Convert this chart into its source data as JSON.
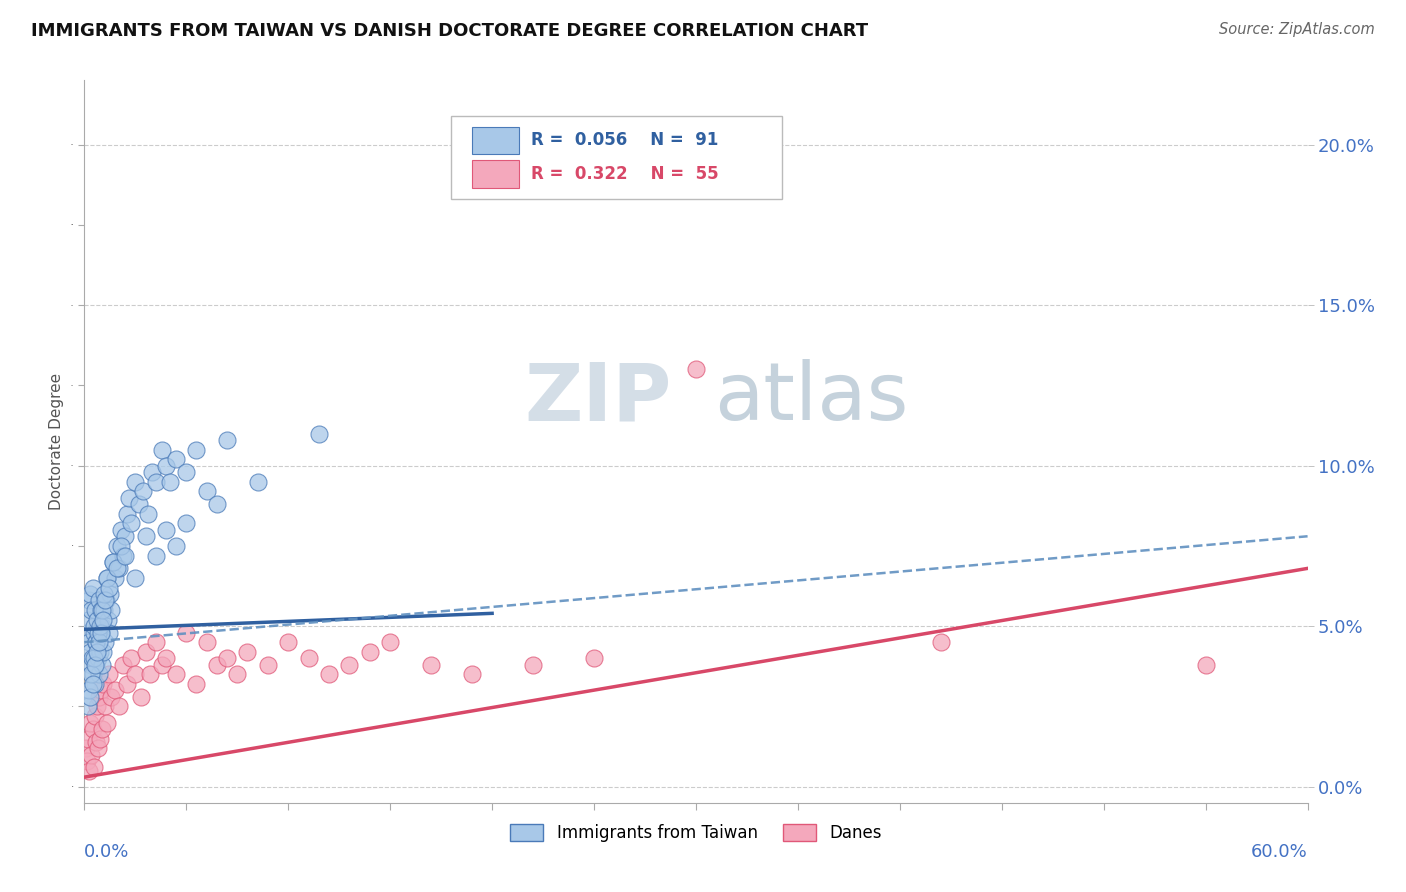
{
  "title": "IMMIGRANTS FROM TAIWAN VS DANISH DOCTORATE DEGREE CORRELATION CHART",
  "source": "Source: ZipAtlas.com",
  "ylabel": "Doctorate Degree",
  "ylabel_right_vals": [
    0.0,
    5.0,
    10.0,
    15.0,
    20.0
  ],
  "xmin": 0.0,
  "xmax": 60.0,
  "ymin": -0.5,
  "ymax": 22.0,
  "blue_color": "#a8c8e8",
  "pink_color": "#f4a8bc",
  "blue_edge_color": "#4a7ab8",
  "pink_edge_color": "#e05878",
  "blue_line_color": "#3060a0",
  "pink_line_color": "#d84868",
  "blue_dashed_color": "#6090c0",
  "watermark_zip": "ZIP",
  "watermark_atlas": "atlas",
  "background_color": "#ffffff",
  "grid_color": "#cccccc",
  "blue_line": {
    "x0": 0.0,
    "x1": 20.0,
    "y0": 4.9,
    "y1": 5.4
  },
  "blue_dashed_line": {
    "x0": 0.0,
    "x1": 60.0,
    "y0": 4.5,
    "y1": 7.8
  },
  "pink_line": {
    "x0": 0.0,
    "x1": 60.0,
    "y0": 0.3,
    "y1": 6.8
  },
  "blue_x": [
    0.15,
    0.18,
    0.22,
    0.25,
    0.28,
    0.3,
    0.32,
    0.35,
    0.38,
    0.4,
    0.42,
    0.45,
    0.48,
    0.5,
    0.52,
    0.55,
    0.58,
    0.6,
    0.65,
    0.7,
    0.72,
    0.75,
    0.8,
    0.82,
    0.85,
    0.88,
    0.9,
    0.95,
    1.0,
    1.05,
    1.1,
    1.15,
    1.2,
    1.25,
    1.3,
    1.4,
    1.5,
    1.6,
    1.7,
    1.8,
    1.9,
    2.0,
    2.1,
    2.2,
    2.3,
    2.5,
    2.7,
    2.9,
    3.1,
    3.3,
    3.5,
    3.8,
    4.0,
    4.2,
    4.5,
    5.0,
    5.5,
    6.0,
    7.0,
    8.5,
    0.2,
    0.25,
    0.3,
    0.35,
    0.4,
    0.45,
    0.5,
    0.55,
    0.6,
    0.65,
    0.7,
    0.75,
    0.8,
    0.85,
    0.9,
    0.95,
    1.0,
    1.1,
    1.2,
    1.4,
    1.6,
    1.8,
    2.0,
    2.5,
    3.0,
    3.5,
    4.0,
    4.5,
    5.0,
    6.5,
    11.5
  ],
  "blue_y": [
    4.8,
    5.2,
    4.5,
    5.8,
    4.2,
    6.0,
    3.8,
    5.5,
    4.0,
    6.2,
    3.5,
    4.8,
    5.0,
    3.2,
    5.5,
    4.5,
    3.8,
    5.2,
    4.0,
    5.8,
    3.5,
    4.2,
    5.5,
    4.8,
    3.8,
    5.0,
    4.2,
    5.5,
    4.5,
    5.8,
    6.5,
    5.2,
    4.8,
    6.0,
    5.5,
    7.0,
    6.5,
    7.5,
    6.8,
    8.0,
    7.2,
    7.8,
    8.5,
    9.0,
    8.2,
    9.5,
    8.8,
    9.2,
    8.5,
    9.8,
    9.5,
    10.5,
    10.0,
    9.5,
    10.2,
    9.8,
    10.5,
    9.2,
    10.8,
    9.5,
    2.5,
    3.0,
    2.8,
    3.5,
    3.2,
    4.0,
    3.8,
    4.5,
    4.2,
    4.8,
    4.5,
    5.0,
    4.8,
    5.5,
    5.2,
    6.0,
    5.8,
    6.5,
    6.2,
    7.0,
    6.8,
    7.5,
    7.2,
    6.5,
    7.8,
    7.2,
    8.0,
    7.5,
    8.2,
    8.8,
    11.0
  ],
  "pink_x": [
    0.1,
    0.15,
    0.2,
    0.25,
    0.3,
    0.35,
    0.4,
    0.45,
    0.5,
    0.55,
    0.6,
    0.65,
    0.7,
    0.75,
    0.8,
    0.85,
    0.9,
    1.0,
    1.1,
    1.2,
    1.3,
    1.5,
    1.7,
    1.9,
    2.1,
    2.3,
    2.5,
    2.8,
    3.0,
    3.2,
    3.5,
    3.8,
    4.0,
    4.5,
    5.0,
    5.5,
    6.0,
    6.5,
    7.0,
    7.5,
    8.0,
    9.0,
    10.0,
    11.0,
    12.0,
    13.0,
    14.0,
    15.0,
    17.0,
    19.0,
    22.0,
    25.0,
    30.0,
    42.0,
    55.0
  ],
  "pink_y": [
    1.2,
    0.8,
    1.5,
    0.5,
    2.0,
    1.0,
    1.8,
    0.6,
    2.2,
    1.4,
    2.5,
    1.2,
    2.8,
    1.5,
    3.0,
    1.8,
    3.2,
    2.5,
    2.0,
    3.5,
    2.8,
    3.0,
    2.5,
    3.8,
    3.2,
    4.0,
    3.5,
    2.8,
    4.2,
    3.5,
    4.5,
    3.8,
    4.0,
    3.5,
    4.8,
    3.2,
    4.5,
    3.8,
    4.0,
    3.5,
    4.2,
    3.8,
    4.5,
    4.0,
    3.5,
    3.8,
    4.2,
    4.5,
    3.8,
    3.5,
    3.8,
    4.0,
    13.0,
    4.5,
    3.8
  ]
}
